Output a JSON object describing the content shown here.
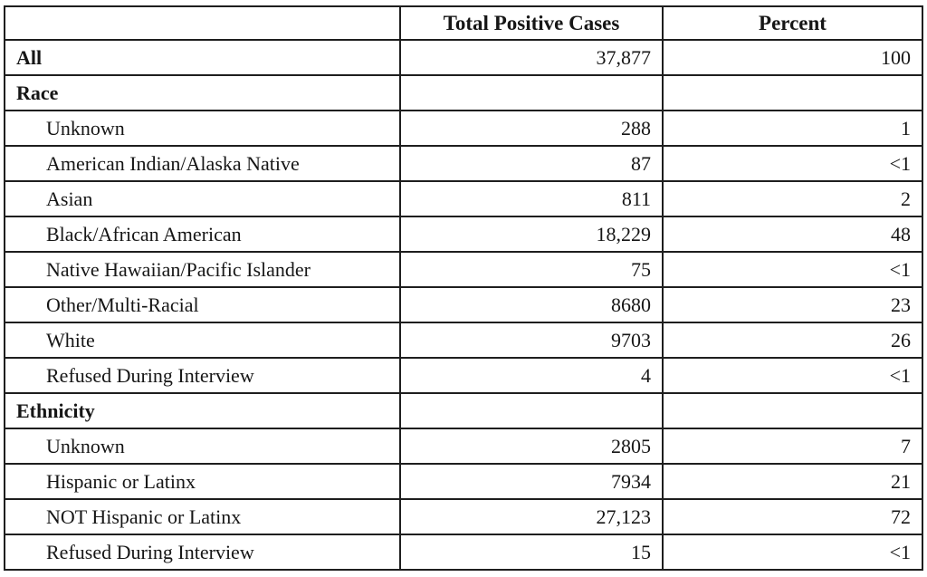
{
  "table": {
    "columns": [
      "",
      "Total Positive Cases",
      "Percent"
    ],
    "rows": [
      {
        "label": "All",
        "style": "section",
        "cases": "37,877",
        "percent": "100"
      },
      {
        "label": "Race",
        "style": "section",
        "cases": "",
        "percent": ""
      },
      {
        "label": "Unknown",
        "style": "item",
        "cases": "288",
        "percent": "1"
      },
      {
        "label": "American Indian/Alaska Native",
        "style": "item",
        "cases": "87",
        "percent": "<1"
      },
      {
        "label": "Asian",
        "style": "item",
        "cases": "811",
        "percent": "2"
      },
      {
        "label": "Black/African American",
        "style": "item",
        "cases": "18,229",
        "percent": "48"
      },
      {
        "label": "Native Hawaiian/Pacific Islander",
        "style": "item",
        "cases": "75",
        "percent": "<1"
      },
      {
        "label": "Other/Multi-Racial",
        "style": "item",
        "cases": "8680",
        "percent": "23"
      },
      {
        "label": "White",
        "style": "item",
        "cases": "9703",
        "percent": "26"
      },
      {
        "label": "Refused During Interview",
        "style": "item",
        "cases": "4",
        "percent": "<1"
      },
      {
        "label": "Ethnicity",
        "style": "section",
        "cases": "",
        "percent": ""
      },
      {
        "label": "Unknown",
        "style": "item",
        "cases": "2805",
        "percent": "7"
      },
      {
        "label": "Hispanic or Latinx",
        "style": "item",
        "cases": "7934",
        "percent": "21"
      },
      {
        "label": "NOT Hispanic or Latinx",
        "style": "item",
        "cases": "27,123",
        "percent": "72"
      },
      {
        "label": "Refused During Interview",
        "style": "item",
        "cases": "15",
        "percent": "<1"
      }
    ]
  },
  "colors": {
    "border": "#1e1e1e",
    "text": "#161616",
    "background": "#ffffff"
  }
}
